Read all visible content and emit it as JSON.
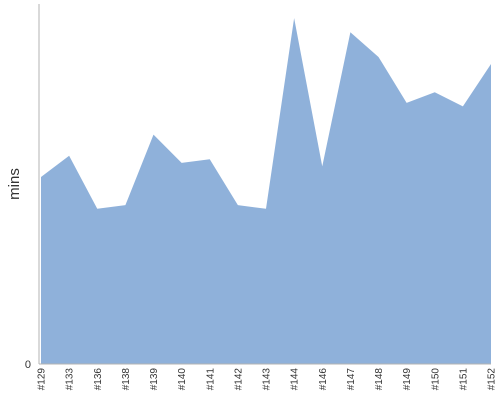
{
  "chart_data": {
    "type": "area",
    "title": "",
    "xlabel": "",
    "ylabel": "mins",
    "categories": [
      "#129",
      "#133",
      "#136",
      "#138",
      "#139",
      "#140",
      "#141",
      "#142",
      "#143",
      "#144",
      "#146",
      "#147",
      "#148",
      "#149",
      "#150",
      "#151",
      "#152"
    ],
    "series": [
      {
        "name": "",
        "values": [
          53,
          59,
          44,
          45,
          65,
          57,
          58,
          45,
          44,
          98,
          56,
          94,
          87,
          74,
          77,
          73,
          85
        ]
      }
    ],
    "ylim": [
      0,
      102
    ],
    "y_ticks": [
      {
        "value": 0,
        "label": "0"
      }
    ],
    "grid": false,
    "legend": "none",
    "fill_color": "#8fb1da"
  }
}
